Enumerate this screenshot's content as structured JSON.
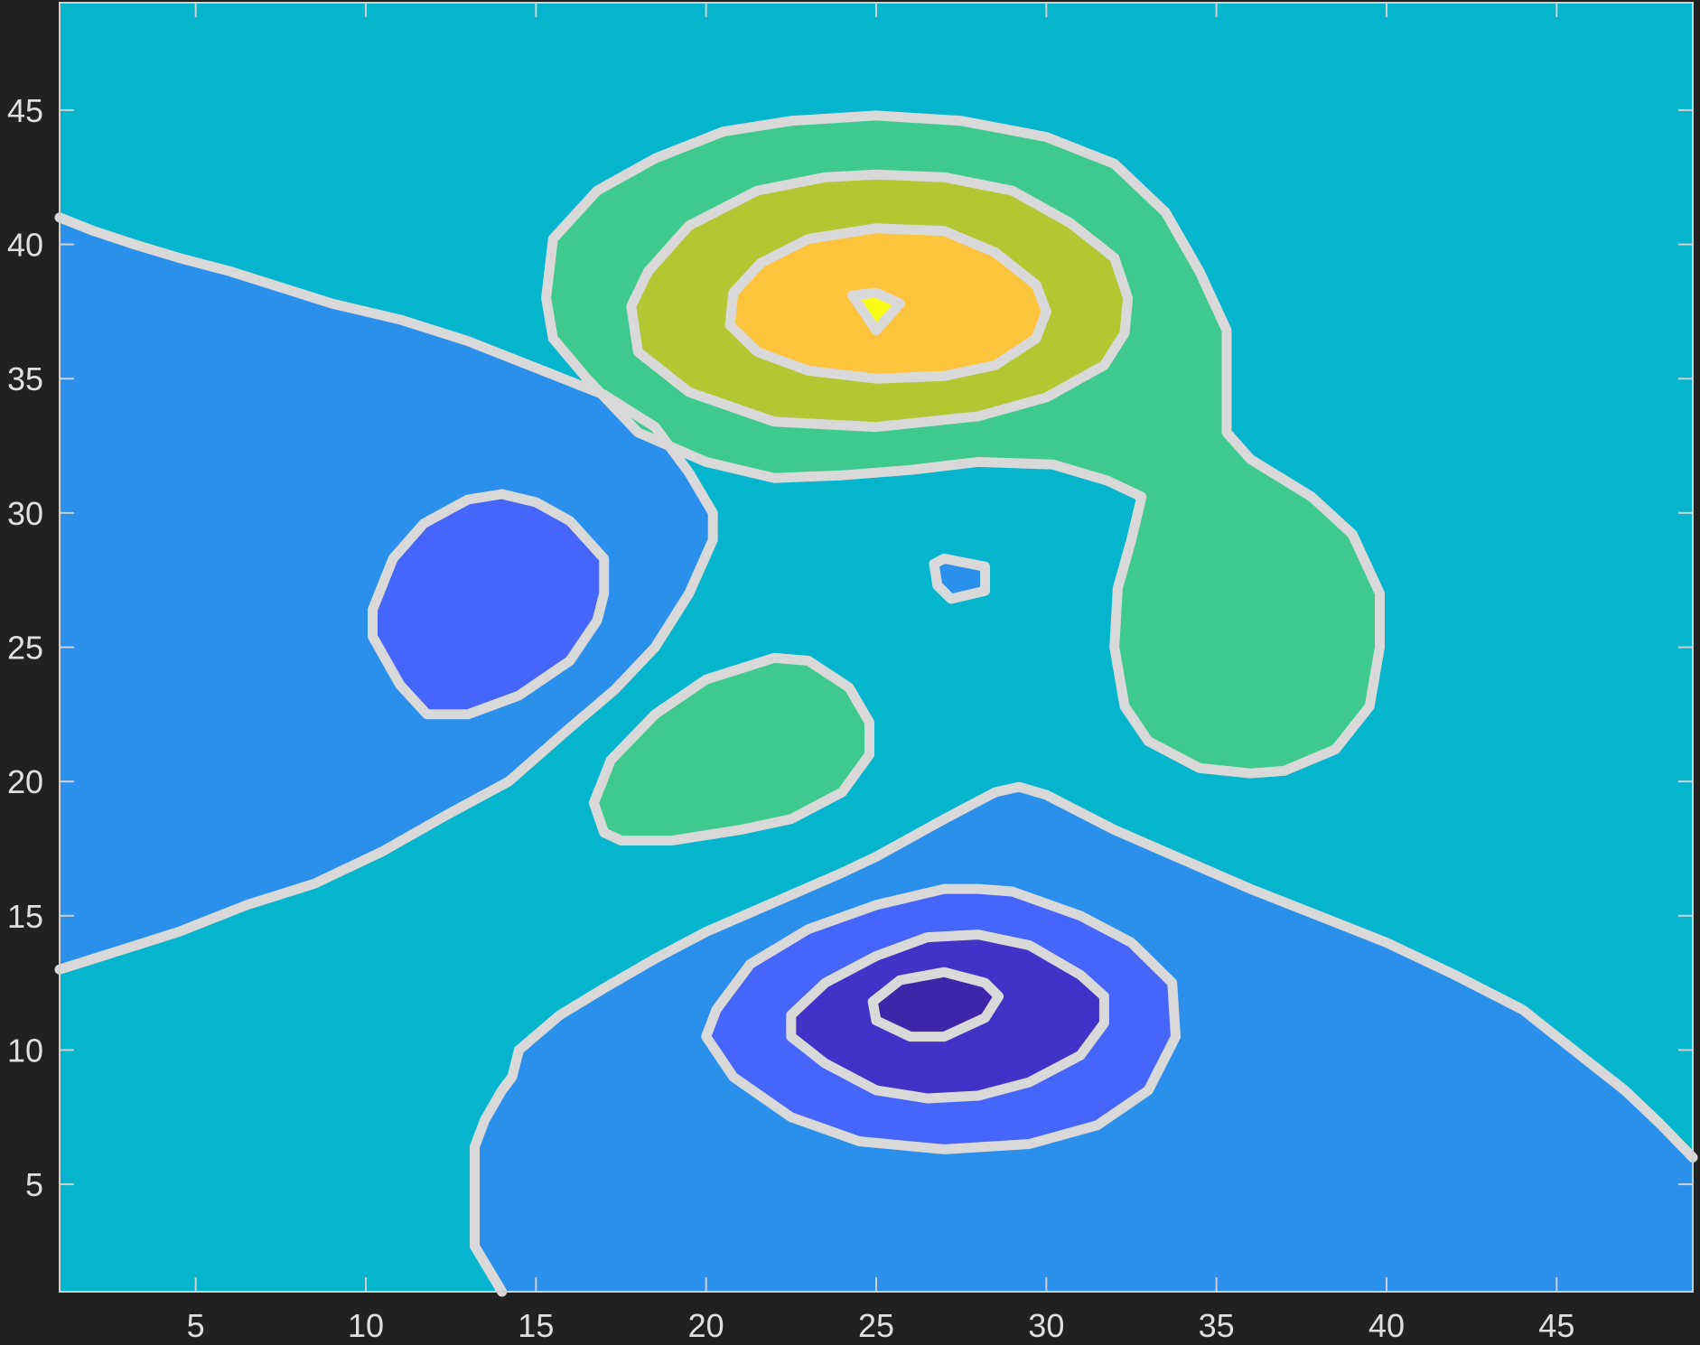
{
  "chart_data": {
    "type": "contour",
    "title": "",
    "xlabel": "",
    "ylabel": "",
    "xlim": [
      1,
      49
    ],
    "ylim": [
      1,
      49
    ],
    "xticks": [
      5,
      10,
      15,
      20,
      25,
      30,
      35,
      40,
      45
    ],
    "yticks": [
      5,
      10,
      15,
      20,
      25,
      30,
      35,
      40,
      45
    ],
    "xtick_labels": [
      "5",
      "10",
      "15",
      "20",
      "25",
      "30",
      "35",
      "40",
      "45"
    ],
    "ytick_labels": [
      "5",
      "10",
      "15",
      "20",
      "25",
      "30",
      "35",
      "40",
      "45"
    ],
    "colors": {
      "background": "#212121",
      "frame": "#d0d0d0",
      "contour_line": "#d9d9d9",
      "tick_label": "#e0e0e0"
    },
    "levels": [
      {
        "name": "level-1",
        "color": "#3d26a8"
      },
      {
        "name": "level-2",
        "color": "#4232c8"
      },
      {
        "name": "level-3",
        "color": "#4565fb"
      },
      {
        "name": "level-4",
        "color": "#2b8fec"
      },
      {
        "name": "level-5",
        "color": "#04b5cd"
      },
      {
        "name": "level-6",
        "color": "#3ec98f"
      },
      {
        "name": "level-7",
        "color": "#b2c732"
      },
      {
        "name": "level-8",
        "color": "#fec43b"
      },
      {
        "name": "level-9",
        "color": "#f9fb14"
      }
    ],
    "regions": [
      {
        "name": "left-lobe-level4",
        "level": 3,
        "points": [
          [
            1,
            41
          ],
          [
            2,
            40.5
          ],
          [
            3.2,
            40
          ],
          [
            4.5,
            39.5
          ],
          [
            6,
            39
          ],
          [
            7.5,
            38.4
          ],
          [
            9,
            37.8
          ],
          [
            11,
            37.2
          ],
          [
            13,
            36.4
          ],
          [
            15,
            35.4
          ],
          [
            17,
            34.4
          ],
          [
            18.5,
            33.2
          ],
          [
            19.5,
            31.5
          ],
          [
            20.2,
            30
          ],
          [
            20.2,
            29
          ],
          [
            19.5,
            27
          ],
          [
            18.5,
            25
          ],
          [
            17.3,
            23.4
          ],
          [
            16,
            22
          ],
          [
            14.2,
            20
          ],
          [
            12.3,
            18.7
          ],
          [
            10.5,
            17.4
          ],
          [
            8.5,
            16.2
          ],
          [
            6.5,
            15.4
          ],
          [
            4.5,
            14.4
          ],
          [
            3,
            13.8
          ],
          [
            1,
            13
          ]
        ]
      },
      {
        "name": "left-lobe-level3",
        "level": 2,
        "points": [
          [
            14,
            30.7
          ],
          [
            15,
            30.4
          ],
          [
            16,
            29.7
          ],
          [
            17,
            28.3
          ],
          [
            17,
            27
          ],
          [
            16.8,
            26
          ],
          [
            16,
            24.5
          ],
          [
            14.5,
            23.2
          ],
          [
            13,
            22.5
          ],
          [
            11.8,
            22.5
          ],
          [
            11,
            23.6
          ],
          [
            10.2,
            25.4
          ],
          [
            10.2,
            26.4
          ],
          [
            10.8,
            28.3
          ],
          [
            11.7,
            29.6
          ],
          [
            13,
            30.5
          ]
        ]
      },
      {
        "name": "bottom-lobe-level4",
        "level": 3,
        "points": [
          [
            14,
            1
          ],
          [
            13.2,
            2.7
          ],
          [
            13.2,
            5
          ],
          [
            13.2,
            6.4
          ],
          [
            13.5,
            7.4
          ],
          [
            14,
            8.5
          ],
          [
            14.3,
            9
          ],
          [
            14.5,
            10
          ],
          [
            15.7,
            11.3
          ],
          [
            17,
            12.3
          ],
          [
            18.5,
            13.4
          ],
          [
            20,
            14.4
          ],
          [
            22,
            15.5
          ],
          [
            24,
            16.6
          ],
          [
            25,
            17.2
          ],
          [
            27,
            18.6
          ],
          [
            28.5,
            19.6
          ],
          [
            29.2,
            19.8
          ],
          [
            30,
            19.5
          ],
          [
            32,
            18.2
          ],
          [
            34,
            17.1
          ],
          [
            36,
            16
          ],
          [
            38,
            15
          ],
          [
            40,
            14
          ],
          [
            42,
            12.8
          ],
          [
            44,
            11.5
          ],
          [
            45,
            10.5
          ],
          [
            46,
            9.5
          ],
          [
            47,
            8.5
          ],
          [
            48,
            7.3
          ],
          [
            49,
            6
          ],
          [
            49,
            1
          ]
        ]
      },
      {
        "name": "bottom-lobe-level3",
        "level": 2,
        "points": [
          [
            28,
            16
          ],
          [
            29,
            15.9
          ],
          [
            31,
            15
          ],
          [
            32.5,
            14
          ],
          [
            33.7,
            12.5
          ],
          [
            33.8,
            10.5
          ],
          [
            33,
            8.5
          ],
          [
            31.5,
            7.2
          ],
          [
            29.5,
            6.5
          ],
          [
            27,
            6.3
          ],
          [
            24.5,
            6.6
          ],
          [
            22.5,
            7.5
          ],
          [
            20.8,
            9
          ],
          [
            20,
            10.5
          ],
          [
            20.3,
            11.5
          ],
          [
            21.3,
            13.2
          ],
          [
            23,
            14.5
          ],
          [
            25,
            15.4
          ],
          [
            27,
            16
          ]
        ]
      },
      {
        "name": "bottom-lobe-level2",
        "level": 1,
        "points": [
          [
            28,
            14.3
          ],
          [
            29.5,
            13.9
          ],
          [
            31,
            12.8
          ],
          [
            31.7,
            12
          ],
          [
            31.7,
            11
          ],
          [
            31,
            9.8
          ],
          [
            29.5,
            8.8
          ],
          [
            28,
            8.3
          ],
          [
            26.5,
            8.2
          ],
          [
            25,
            8.5
          ],
          [
            23.5,
            9.5
          ],
          [
            22.5,
            10.5
          ],
          [
            22.5,
            11.3
          ],
          [
            23.5,
            12.5
          ],
          [
            25,
            13.5
          ],
          [
            26.5,
            14.2
          ]
        ]
      },
      {
        "name": "bottom-lobe-level1",
        "level": 0,
        "points": [
          [
            27,
            12.9
          ],
          [
            28.2,
            12.5
          ],
          [
            28.6,
            12
          ],
          [
            28.2,
            11.2
          ],
          [
            27,
            10.5
          ],
          [
            26,
            10.5
          ],
          [
            25,
            11.1
          ],
          [
            24.9,
            11.8
          ],
          [
            25.7,
            12.6
          ]
        ]
      },
      {
        "name": "small-pocket-level4",
        "level": 3,
        "points": [
          [
            27,
            28.3
          ],
          [
            28.2,
            28
          ],
          [
            28.2,
            27.1
          ],
          [
            27.2,
            26.8
          ],
          [
            26.8,
            27.3
          ],
          [
            26.7,
            28.1
          ]
        ]
      },
      {
        "name": "upper-lobe-level6",
        "level": 5,
        "points": [
          [
            25,
            44.8
          ],
          [
            27.5,
            44.6
          ],
          [
            30,
            44
          ],
          [
            32,
            43
          ],
          [
            33.5,
            41.2
          ],
          [
            34.5,
            39
          ],
          [
            35.3,
            36.8
          ],
          [
            35.3,
            33
          ],
          [
            36,
            32
          ],
          [
            37.8,
            30.6
          ],
          [
            39,
            29.2
          ],
          [
            39.8,
            27
          ],
          [
            39.8,
            25
          ],
          [
            39.5,
            22.8
          ],
          [
            38.5,
            21.2
          ],
          [
            37,
            20.4
          ],
          [
            36,
            20.3
          ],
          [
            34.5,
            20.5
          ],
          [
            33,
            21.5
          ],
          [
            32.3,
            22.8
          ],
          [
            32,
            25
          ],
          [
            32.1,
            27.2
          ],
          [
            32.5,
            29
          ],
          [
            32.8,
            30.6
          ],
          [
            31.8,
            31.2
          ],
          [
            30.2,
            31.8
          ],
          [
            28,
            31.9
          ],
          [
            26,
            31.6
          ],
          [
            24,
            31.4
          ],
          [
            22,
            31.3
          ],
          [
            20,
            31.9
          ],
          [
            18,
            33
          ],
          [
            16.5,
            35
          ],
          [
            15.5,
            36.5
          ],
          [
            15.3,
            38
          ],
          [
            15.5,
            40.2
          ],
          [
            16.8,
            42
          ],
          [
            18.5,
            43.2
          ],
          [
            20.5,
            44.2
          ],
          [
            22.5,
            44.6
          ]
        ]
      },
      {
        "name": "center-lobe-level6",
        "level": 5,
        "points": [
          [
            22,
            24.6
          ],
          [
            23,
            24.5
          ],
          [
            24.2,
            23.5
          ],
          [
            24.8,
            22.2
          ],
          [
            24.8,
            21
          ],
          [
            24,
            19.6
          ],
          [
            22.5,
            18.6
          ],
          [
            21,
            18.2
          ],
          [
            19,
            17.8
          ],
          [
            17.5,
            17.8
          ],
          [
            17,
            18.1
          ],
          [
            16.7,
            19.2
          ],
          [
            17.2,
            20.8
          ],
          [
            18.5,
            22.5
          ],
          [
            20,
            23.8
          ]
        ]
      },
      {
        "name": "upper-lobe-level7",
        "level": 6,
        "points": [
          [
            25,
            42.6
          ],
          [
            27,
            42.5
          ],
          [
            29,
            42
          ],
          [
            30.7,
            40.8
          ],
          [
            32,
            39.5
          ],
          [
            32.4,
            38
          ],
          [
            32.3,
            36.7
          ],
          [
            31.7,
            35.5
          ],
          [
            30,
            34.3
          ],
          [
            28,
            33.6
          ],
          [
            25,
            33.2
          ],
          [
            22,
            33.4
          ],
          [
            19.5,
            34.5
          ],
          [
            18,
            36
          ],
          [
            17.8,
            37.7
          ],
          [
            18.3,
            39
          ],
          [
            19.5,
            40.7
          ],
          [
            21.5,
            42
          ],
          [
            23.5,
            42.5
          ]
        ]
      },
      {
        "name": "upper-lobe-level8",
        "level": 7,
        "points": [
          [
            25,
            40.6
          ],
          [
            27,
            40.5
          ],
          [
            28.5,
            39.7
          ],
          [
            29.7,
            38.5
          ],
          [
            30,
            37.5
          ],
          [
            29.7,
            36.5
          ],
          [
            28.5,
            35.5
          ],
          [
            27,
            35.1
          ],
          [
            25,
            35
          ],
          [
            23,
            35.3
          ],
          [
            21.5,
            36
          ],
          [
            20.7,
            37
          ],
          [
            20.8,
            38.2
          ],
          [
            21.6,
            39.3
          ],
          [
            23,
            40.2
          ]
        ]
      },
      {
        "name": "upper-lobe-level9",
        "level": 8,
        "points": [
          [
            24.3,
            38.1
          ],
          [
            25,
            38.2
          ],
          [
            25.7,
            37.8
          ],
          [
            25,
            36.8
          ]
        ]
      }
    ]
  }
}
